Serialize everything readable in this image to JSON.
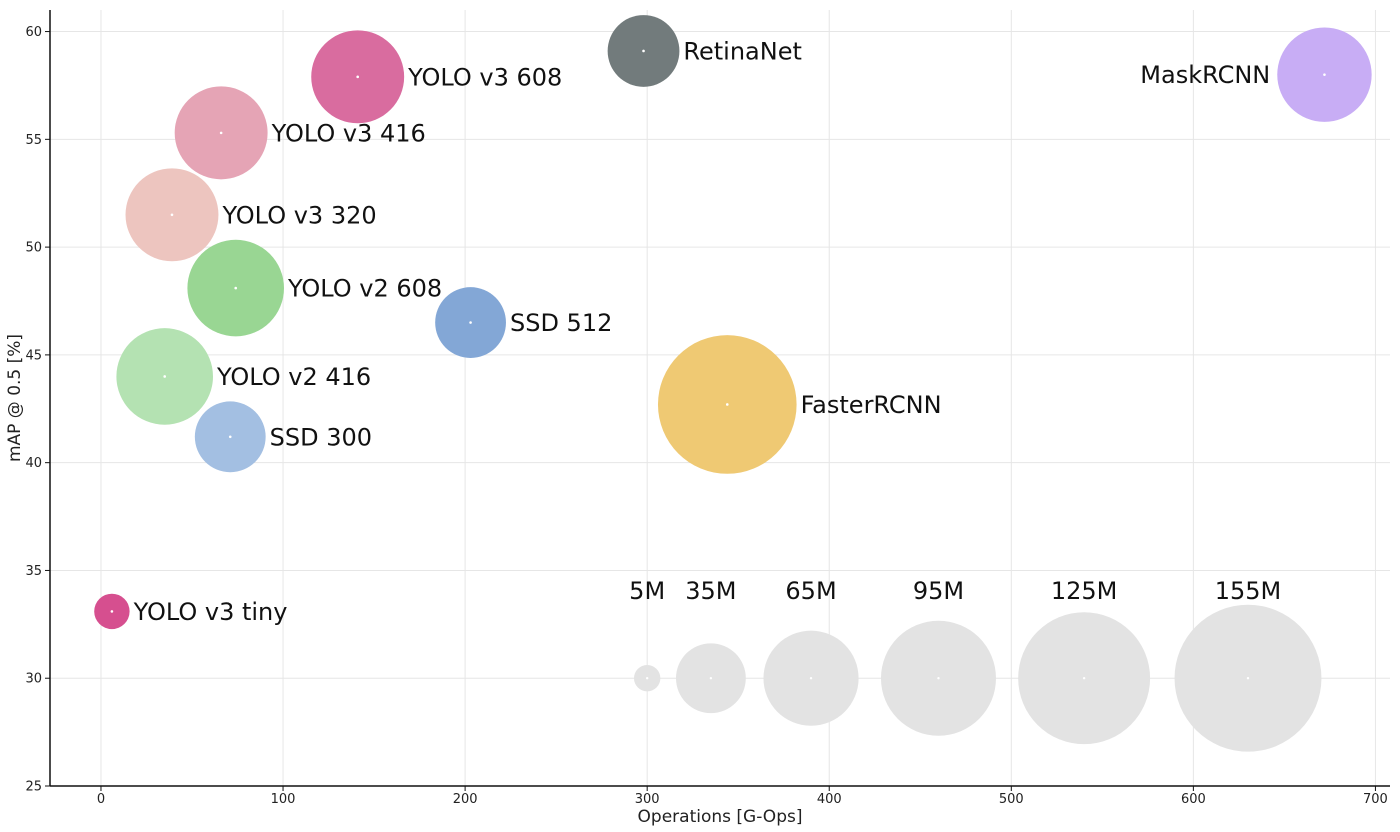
{
  "chart_data": {
    "type": "scatter",
    "title": "",
    "xlabel": "Operations [G-Ops]",
    "ylabel": "mAP @ 0.5 [%]",
    "xlim": [
      -28,
      708
    ],
    "ylim": [
      25,
      61
    ],
    "xticks": [
      0,
      100,
      200,
      300,
      400,
      500,
      600,
      700
    ],
    "yticks": [
      25,
      30,
      35,
      40,
      45,
      50,
      55,
      60
    ],
    "grid": true,
    "size_unit": "parameters",
    "points": [
      {
        "label": "YOLO v3 tiny",
        "x": 6,
        "y": 33.1,
        "size_m": 9,
        "color": "#d64f8f",
        "label_side": "right"
      },
      {
        "label": "SSD 300",
        "x": 71,
        "y": 41.2,
        "size_m": 36,
        "color": "#a3bfe2",
        "label_side": "right"
      },
      {
        "label": "YOLO v2 416",
        "x": 35,
        "y": 44.0,
        "size_m": 67,
        "color": "#b4e2b2",
        "label_side": "right"
      },
      {
        "label": "YOLO v2 608",
        "x": 74,
        "y": 48.1,
        "size_m": 67,
        "color": "#99d693",
        "label_side": "right"
      },
      {
        "label": "YOLO v3 320",
        "x": 39,
        "y": 51.5,
        "size_m": 62,
        "color": "#edc5bf",
        "label_side": "right"
      },
      {
        "label": "YOLO v3 416",
        "x": 66,
        "y": 55.3,
        "size_m": 62,
        "color": "#e5a4b5",
        "label_side": "right"
      },
      {
        "label": "YOLO v3 608",
        "x": 141,
        "y": 57.9,
        "size_m": 62,
        "color": "#d96c9f",
        "label_side": "right"
      },
      {
        "label": "SSD 512",
        "x": 203,
        "y": 46.5,
        "size_m": 36,
        "color": "#83a7d6",
        "label_side": "right"
      },
      {
        "label": "RetinaNet",
        "x": 298,
        "y": 59.1,
        "size_m": 37,
        "color": "#727b7c",
        "label_side": "right"
      },
      {
        "label": "FasterRCNN",
        "x": 344,
        "y": 42.7,
        "size_m": 138,
        "color": "#efc973",
        "label_side": "right"
      },
      {
        "label": "MaskRCNN",
        "x": 672,
        "y": 58.0,
        "size_m": 64,
        "color": "#c8adf5",
        "label_side": "left"
      }
    ],
    "size_legend": [
      {
        "label": "5M",
        "x": 300,
        "y": 30,
        "size_m": 5
      },
      {
        "label": "35M",
        "x": 335,
        "y": 30,
        "size_m": 35
      },
      {
        "label": "65M",
        "x": 390,
        "y": 30,
        "size_m": 65
      },
      {
        "label": "95M",
        "x": 460,
        "y": 30,
        "size_m": 95
      },
      {
        "label": "125M",
        "x": 540,
        "y": 30,
        "size_m": 125
      },
      {
        "label": "155M",
        "x": 630,
        "y": 30,
        "size_m": 155
      }
    ],
    "legend_color": "#e3e3e3"
  }
}
